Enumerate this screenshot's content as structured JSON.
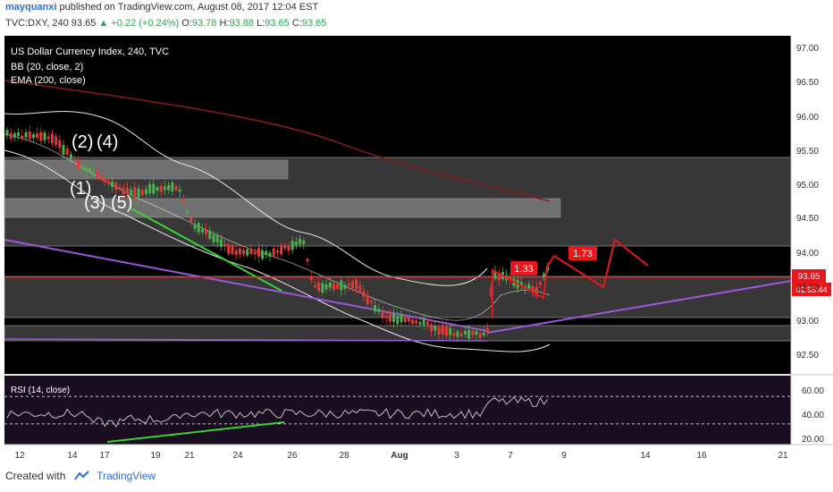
{
  "header": {
    "user": "mayquanxi",
    "published_text": "published on TradingView.com, August 08, 2017 12:04 EST",
    "symbol": "TVC:DXY, 240",
    "last": "93.65",
    "change": "+0.22 (+0.24%)",
    "o_label": "O:",
    "o": "93.78",
    "h_label": "H:",
    "h": "93.88",
    "l_label": "L:",
    "l": "93.65",
    "c_label": "C:",
    "c": "93.65"
  },
  "legend": {
    "title": "US Dollar Currency Index, 240, TVC",
    "bb": "BB (20, close, 2)",
    "ema": "EMA (200, close)",
    "rsi": "RSI (14, close)"
  },
  "footer": {
    "created_with": "Created with",
    "brand": "TradingView"
  },
  "colors": {
    "background": "#000000",
    "band": "#7a7a7a",
    "bollinger": "#e6e6e6",
    "ema": "#8b1a1a",
    "trendline_purple": "#9b59d6",
    "trendline_green": "#36d336",
    "forecast": "#e8171c",
    "up_candle": "#4caf50",
    "down_candle": "#e53935",
    "rsi_panel": "#1a0d22",
    "rsi_line": "#bfbfbf"
  },
  "chart_data": {
    "type": "candlestick",
    "instrument": "TVC:DXY",
    "timeframe": "240",
    "y_ticks": [
      "97.00",
      "96.50",
      "96.00",
      "95.50",
      "95.00",
      "94.50",
      "94.00",
      "93.50",
      "93.00",
      "92.50"
    ],
    "ylim": [
      92.25,
      97.15
    ],
    "x_ticks": [
      "12",
      "14",
      "17",
      "19",
      "21",
      "24",
      "26",
      "28",
      "Aug",
      "3",
      "7",
      "9",
      "14",
      "16",
      "21"
    ],
    "last_price": "93.65",
    "countdown": "01:55:44",
    "zones": [
      {
        "name": "zone-upper-left",
        "y_low": 95.07,
        "y_high": 95.33,
        "x_start": "12",
        "x_end": "26"
      },
      {
        "name": "zone-mid",
        "y_low": 94.45,
        "y_high": 94.8,
        "x_start": "12",
        "x_end": "7+"
      },
      {
        "name": "zone-right-wide",
        "y_low": 94.09,
        "y_high": 95.4,
        "x_start": "12",
        "x_end": "21"
      },
      {
        "name": "zone-low",
        "y_low": 93.03,
        "y_high": 93.62,
        "x_start": "12",
        "x_end": "21"
      },
      {
        "name": "zone-bottom",
        "y_low": 92.62,
        "y_high": 92.88,
        "x_start": "12",
        "x_end": "21"
      }
    ],
    "wave_labels": [
      "(2)",
      "(4)",
      "(1)",
      "(3)",
      "(5)"
    ],
    "forecast_labels": [
      "1.33",
      "1.73"
    ],
    "rsi": {
      "ticks": [
        "60.00",
        "40.00",
        "20.00"
      ],
      "levels": [
        70,
        30
      ],
      "last": 63
    }
  }
}
